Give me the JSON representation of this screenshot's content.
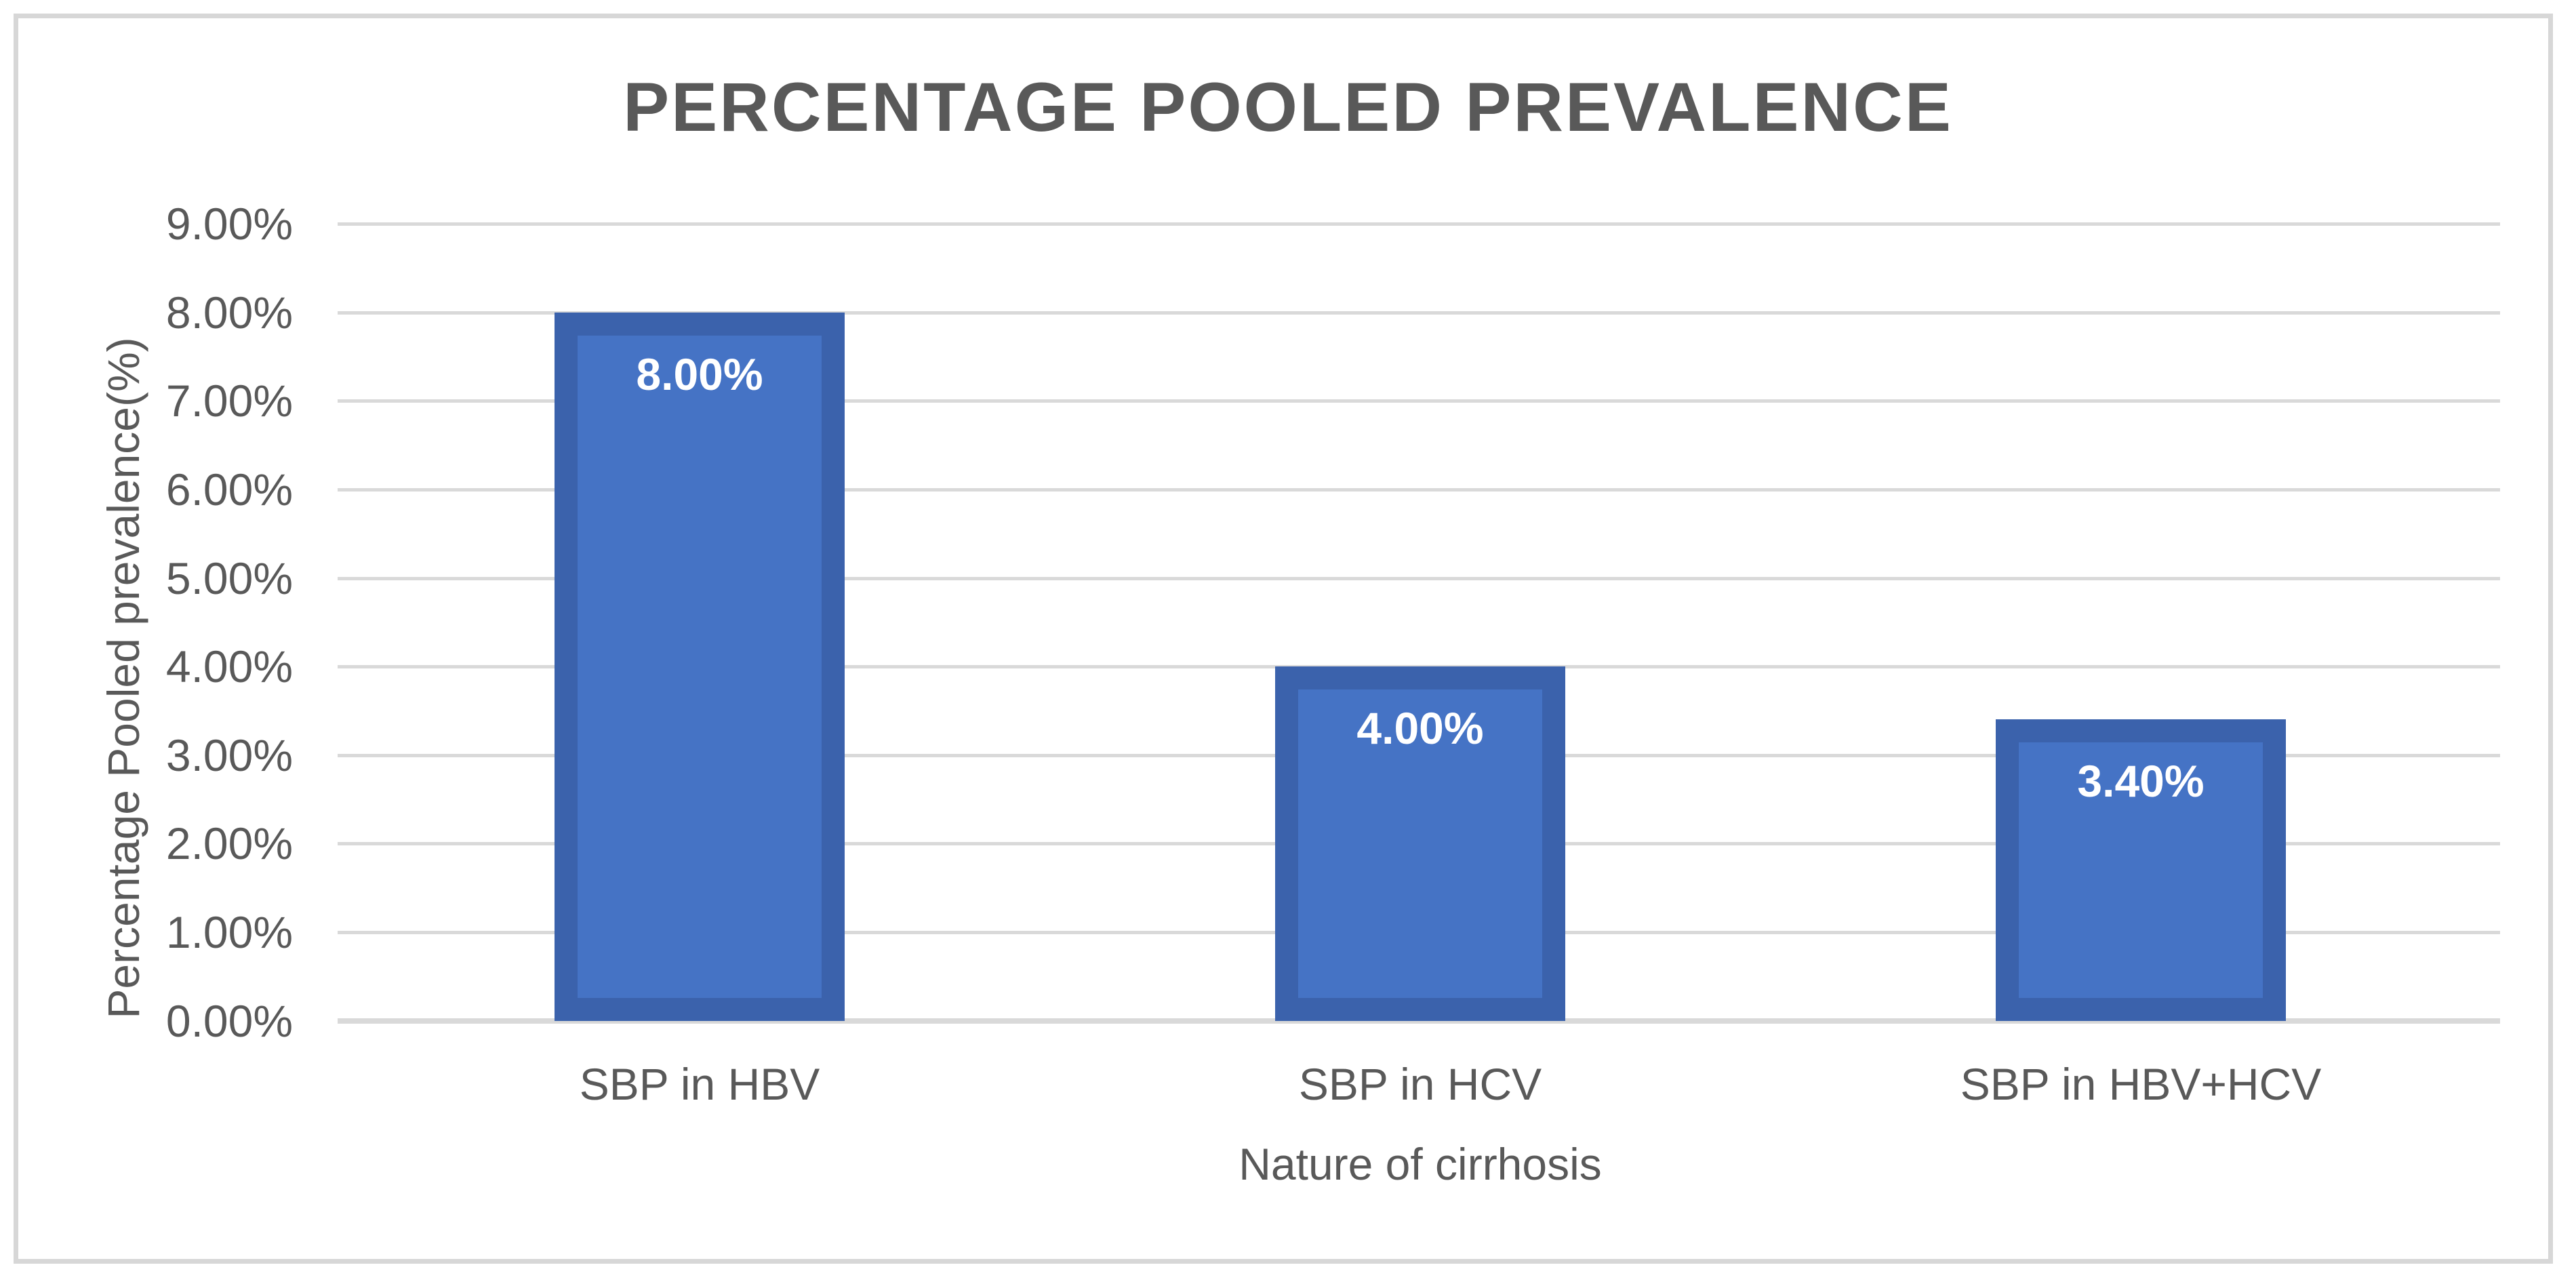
{
  "window": {
    "background_color": "#FFFFFF",
    "frame_border_color": "#D7D7D7"
  },
  "chart_data": {
    "type": "bar",
    "title": "PERCENTAGE POOLED PREVALENCE",
    "xlabel": "Nature of cirrhosis",
    "ylabel": "Percentage Pooled prevalence(%)",
    "categories": [
      "SBP in HBV",
      "SBP in HCV",
      "SBP in HBV+HCV"
    ],
    "values": [
      8.0,
      4.0,
      3.4
    ],
    "data_labels": [
      "8.00%",
      "4.00%",
      "3.40%"
    ],
    "ylim": [
      0,
      9
    ],
    "ytick_step": 1,
    "ytick_labels": [
      "0.00%",
      "1.00%",
      "2.00%",
      "3.00%",
      "4.00%",
      "5.00%",
      "6.00%",
      "7.00%",
      "8.00%",
      "9.00%"
    ],
    "grid": "horizontal",
    "legend": "none",
    "data_label_position": "inside-end",
    "colors": {
      "bar_fill": "#4573C5",
      "bar_border": "#3B62AC",
      "data_label_text": "#FFFFFF",
      "axis_text": "#595959",
      "title_text": "#595959",
      "gridline": "#D9D9D9"
    }
  }
}
